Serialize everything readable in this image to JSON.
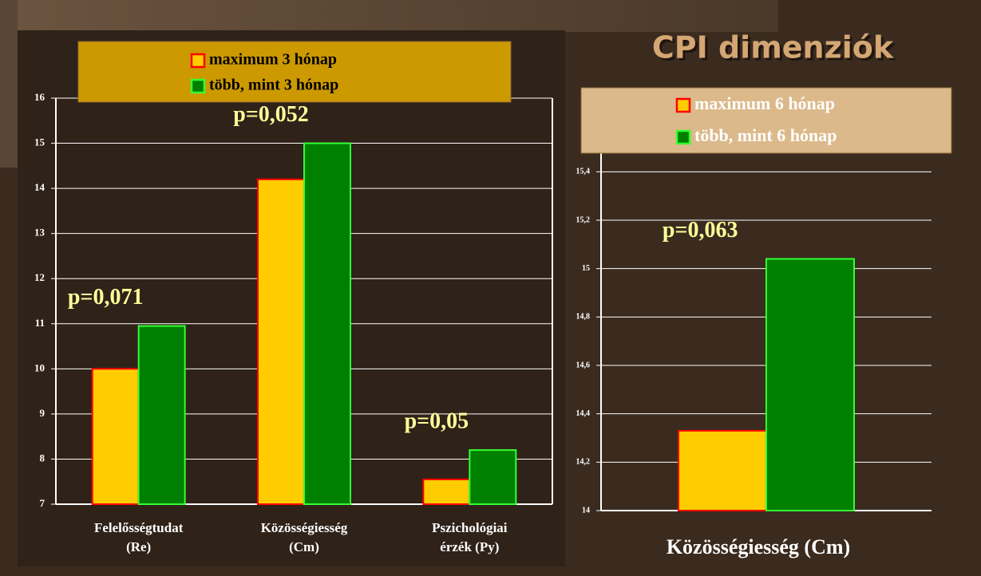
{
  "title": "CPI dimenziók",
  "chart_data": [
    {
      "type": "bar",
      "categories": [
        "Felelősségtudat\n(Re)",
        "Közösségiesség\n(Cm)",
        "Pszichológiai\nérzék (Py)"
      ],
      "series": [
        {
          "name": "maximum 3 hónap",
          "color": "#ffcc00",
          "edgecolor": "#ff0000",
          "values": [
            10.0,
            14.2,
            7.55
          ]
        },
        {
          "name": "több, mint 3 hónap",
          "color": "#008000",
          "edgecolor": "#33ff33",
          "values": [
            10.95,
            15.0,
            8.2
          ]
        }
      ],
      "annotations": [
        "p=0,071",
        "p=0,052",
        "p=0,05"
      ],
      "ylim": [
        7,
        16
      ],
      "yticks": [
        7,
        8,
        9,
        10,
        11,
        12,
        13,
        14,
        15,
        16
      ],
      "grid": true
    },
    {
      "type": "bar",
      "xlabel": "Közösségiesség (Cm)",
      "categories": [
        null
      ],
      "series": [
        {
          "name": "maximum 6 hónap",
          "color": "#ffcc00",
          "edgecolor": "#ff0000",
          "values": [
            14.33
          ]
        },
        {
          "name": "több, mint 6 hónap",
          "color": "#008000",
          "edgecolor": "#33ff33",
          "values": [
            15.04
          ]
        }
      ],
      "annotations": [
        "p=0,063"
      ],
      "ylim": [
        14,
        15.5
      ],
      "yticks": [
        14,
        {
          "value": 14.2,
          "label": "14,2"
        },
        {
          "value": 14.4,
          "label": "14,4"
        },
        {
          "value": 14.6,
          "label": "14,6"
        },
        {
          "value": 14.8,
          "label": "14,8"
        },
        15,
        {
          "value": 15.2,
          "label": "15,2"
        },
        {
          "value": 15.4,
          "label": "15,4"
        }
      ],
      "grid": true
    }
  ]
}
